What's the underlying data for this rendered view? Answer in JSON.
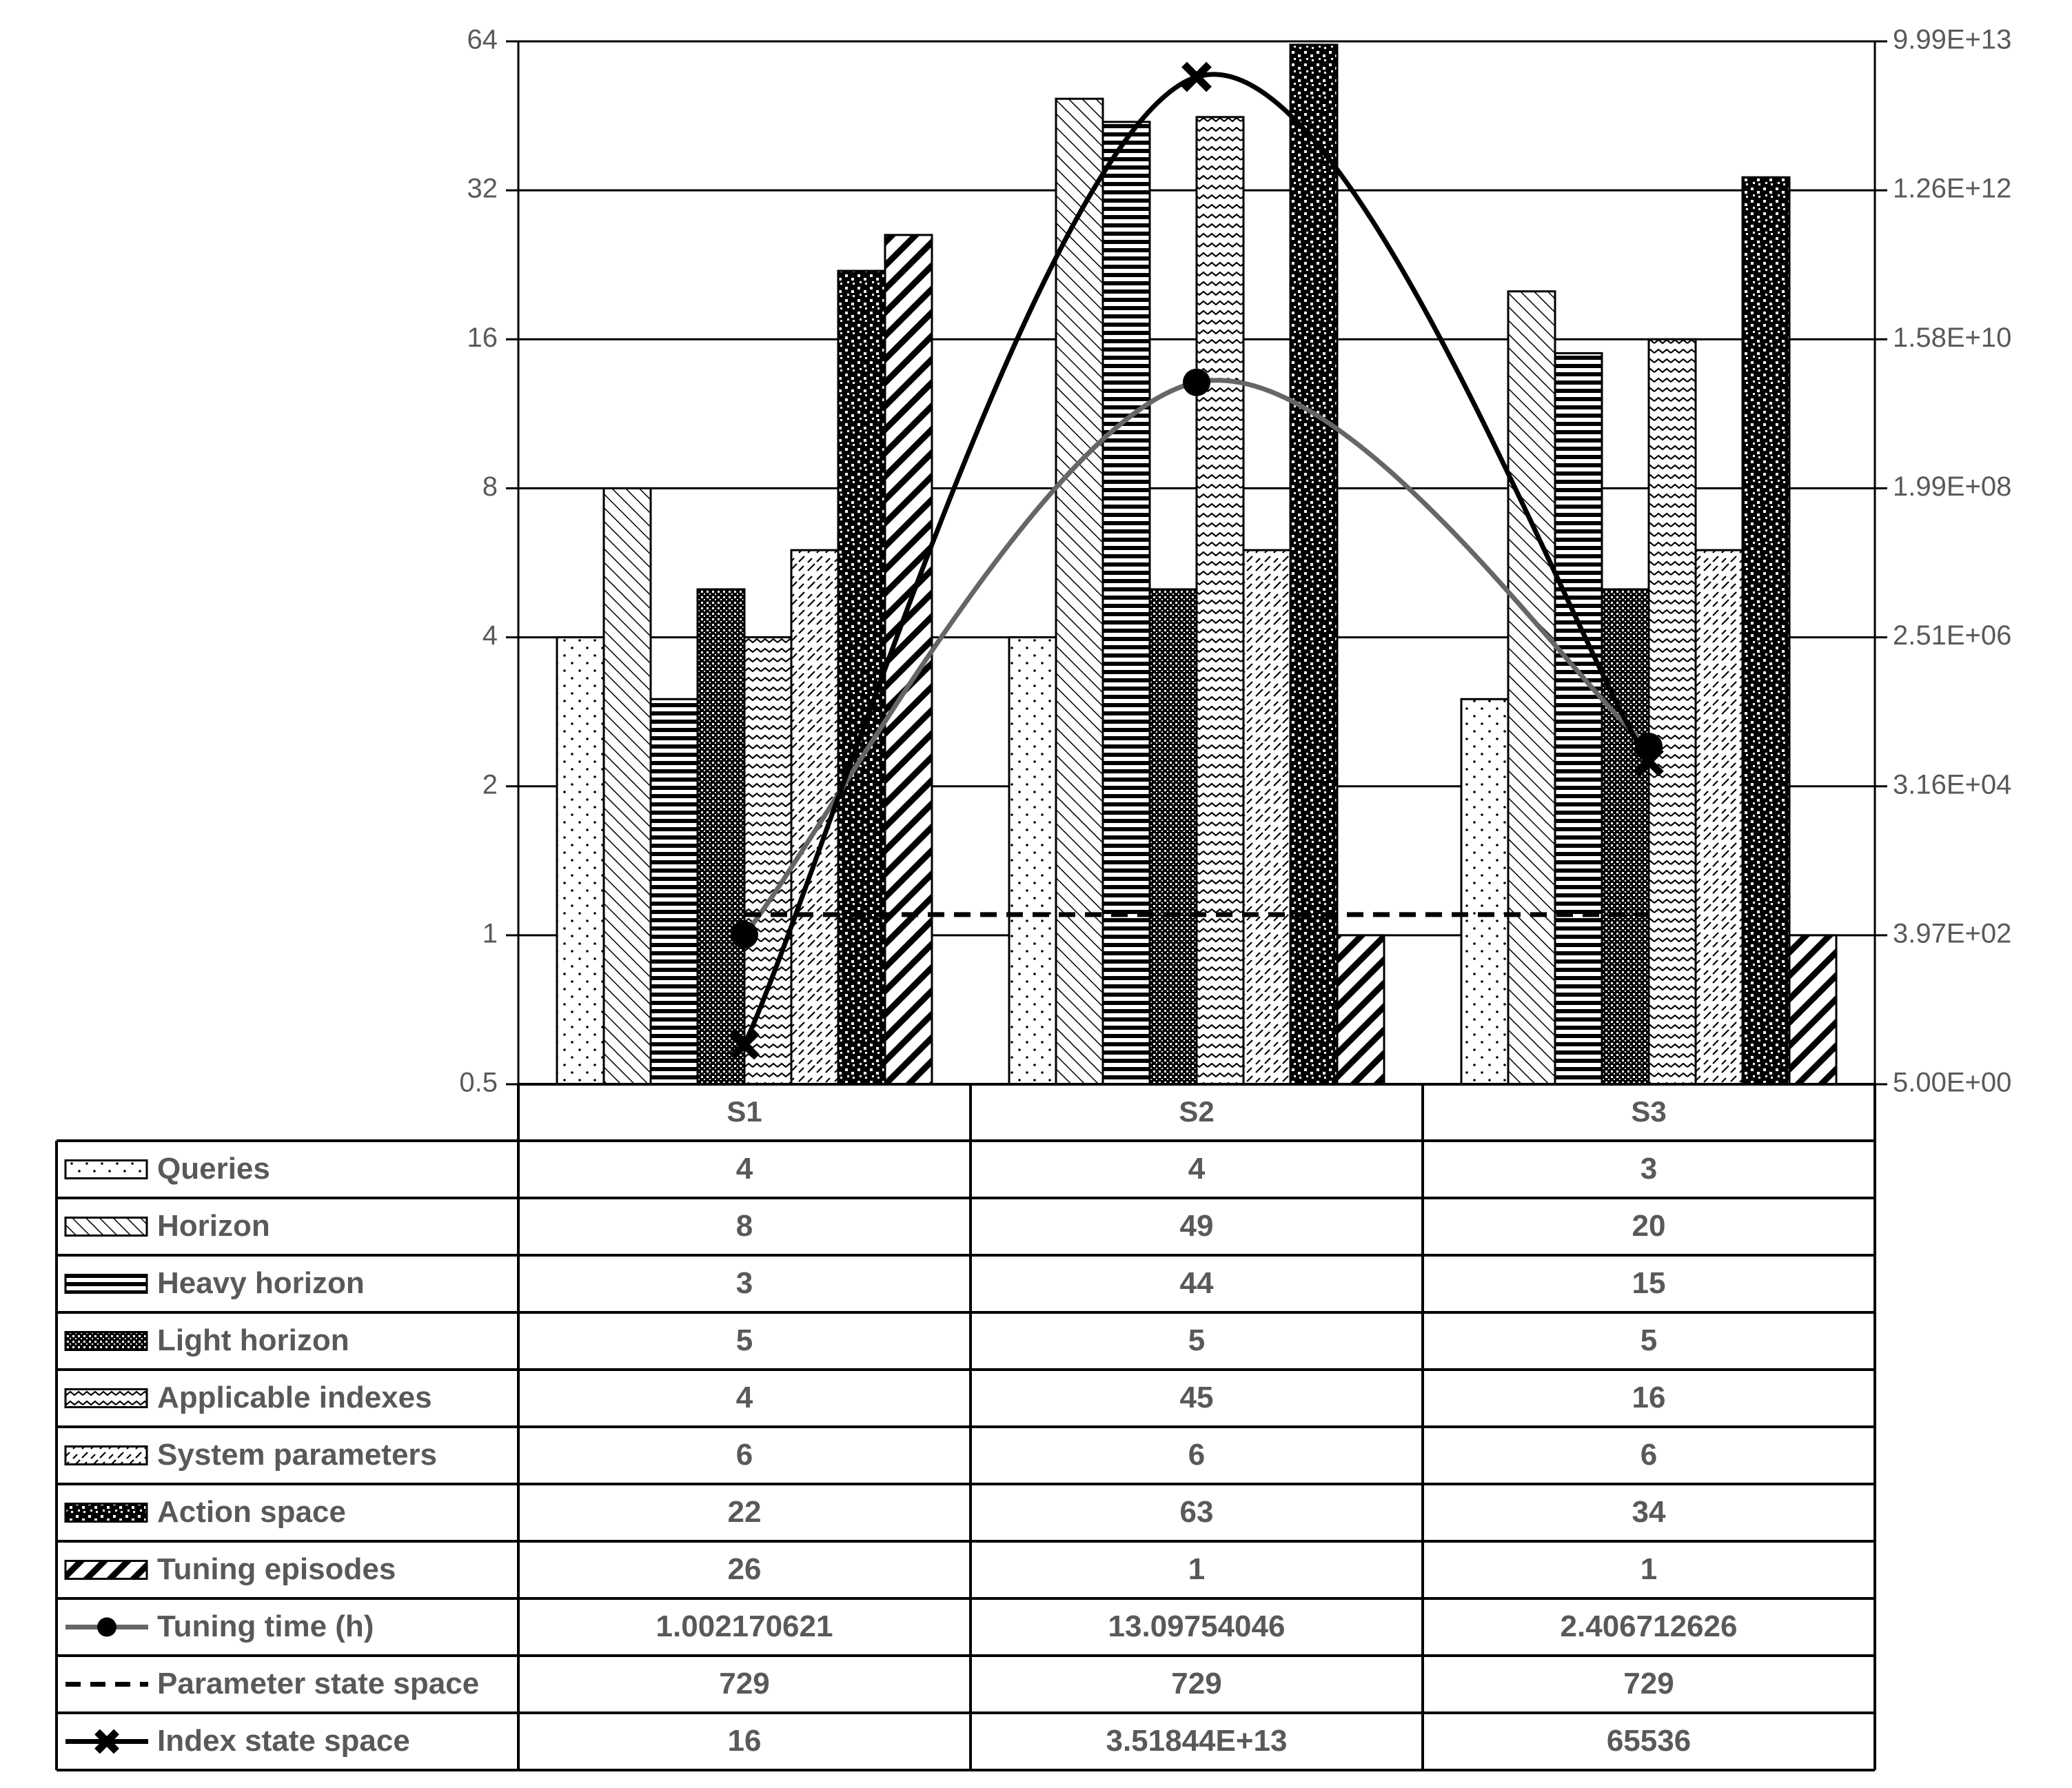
{
  "chart_data": {
    "type": "bar",
    "categories": [
      "S1",
      "S2",
      "S3"
    ],
    "y_left": {
      "scale": "log2",
      "range": [
        0.5,
        64
      ],
      "ticks": [
        "0.5",
        "1",
        "2",
        "4",
        "8",
        "16",
        "32",
        "64"
      ]
    },
    "y_right": {
      "scale": "log",
      "range": [
        5,
        99900000000000
      ],
      "ticks": [
        "5.00E+00",
        "3.97E+02",
        "3.16E+04",
        "2.51E+06",
        "1.99E+08",
        "1.58E+10",
        "1.26E+12",
        "9.99E+13"
      ]
    },
    "grid": true,
    "legend_placement": "data-table",
    "bar_series": [
      {
        "name": "Queries",
        "pattern": "dots-sparse",
        "values": [
          4,
          4,
          3
        ],
        "labels": [
          "4",
          "4",
          "3"
        ]
      },
      {
        "name": "Horizon",
        "pattern": "diag-up",
        "values": [
          8,
          49,
          20
        ],
        "labels": [
          "8",
          "49",
          "20"
        ]
      },
      {
        "name": "Heavy horizon",
        "pattern": "horizontal",
        "values": [
          3,
          44,
          15
        ],
        "labels": [
          "3",
          "44",
          "15"
        ]
      },
      {
        "name": "Light horizon",
        "pattern": "dense-grid",
        "values": [
          5,
          5,
          5
        ],
        "labels": [
          "5",
          "5",
          "5"
        ]
      },
      {
        "name": "Applicable indexes",
        "pattern": "wave",
        "values": [
          4,
          45,
          16
        ],
        "labels": [
          "4",
          "45",
          "16"
        ]
      },
      {
        "name": "System parameters",
        "pattern": "diag-dash",
        "values": [
          6,
          6,
          6
        ],
        "labels": [
          "6",
          "6",
          "6"
        ]
      },
      {
        "name": "Action space",
        "pattern": "confetti",
        "values": [
          22,
          63,
          34
        ],
        "labels": [
          "22",
          "63",
          "34"
        ]
      },
      {
        "name": "Tuning episodes",
        "pattern": "diag-down-wide",
        "values": [
          26,
          1,
          1
        ],
        "labels": [
          "26",
          "1",
          "1"
        ]
      }
    ],
    "line_series": [
      {
        "name": "Tuning time (h)",
        "axis": "left",
        "marker": "circle",
        "dash": "solid",
        "color": "#666666",
        "values": [
          1.002170621,
          13.09754046,
          2.406712626
        ],
        "labels": [
          "1.002170621",
          "13.09754046",
          "2.406712626"
        ]
      },
      {
        "name": "Parameter state space",
        "axis": "right",
        "marker": "none",
        "dash": "dashed",
        "color": "#000000",
        "values": [
          729,
          729,
          729
        ],
        "labels": [
          "729",
          "729",
          "729"
        ]
      },
      {
        "name": "Index state space",
        "axis": "right",
        "marker": "x",
        "dash": "solid",
        "color": "#000000",
        "values": [
          16,
          35184400000000,
          65536
        ],
        "labels": [
          "16",
          "3.51844E+13",
          "65536"
        ]
      }
    ]
  }
}
